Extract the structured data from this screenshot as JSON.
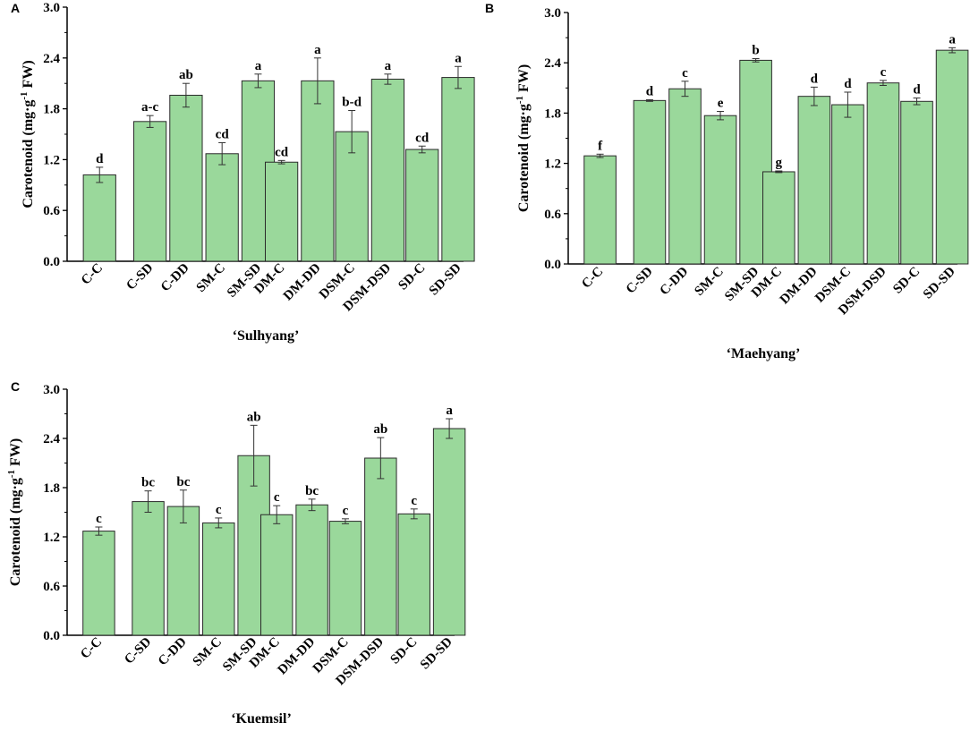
{
  "figure": {
    "bar_color": "#9ad89b",
    "bar_stroke": "#2a2a2a"
  },
  "chart_data": [
    {
      "type": "bar",
      "panel": "A",
      "subtitle": "‘Sulhyang’",
      "ylabel_main": "Carotenoid (mg·g",
      "ylabel_sup": "-1",
      "ylabel_end": " FW)",
      "ylim": [
        0,
        3.0
      ],
      "yticks": [
        "0.0",
        "0.6",
        "1.2",
        "1.8",
        "2.4",
        "3.0"
      ],
      "ytick_values": [
        0,
        0.6,
        1.2,
        1.8,
        2.4,
        3.0
      ],
      "categories": [
        "C-C",
        "C-SD",
        "C-DD",
        "SM-C",
        "SM-SD",
        "DM-C",
        "DM-DD",
        "DSM-C",
        "DSM-DSD",
        "SD-C",
        "SD-SD"
      ],
      "values": [
        1.02,
        1.65,
        1.96,
        1.27,
        2.13,
        1.17,
        2.13,
        1.53,
        2.15,
        1.32,
        2.17
      ],
      "errors": [
        0.09,
        0.07,
        0.14,
        0.13,
        0.08,
        0.02,
        0.27,
        0.25,
        0.06,
        0.04,
        0.13
      ],
      "letters": [
        "d",
        "a-c",
        "ab",
        "cd",
        "a",
        "cd",
        "a",
        "b-d",
        "a",
        "cd",
        "a"
      ]
    },
    {
      "type": "bar",
      "panel": "B",
      "subtitle": "‘Maehyang’",
      "ylabel_main": "Carotenoid (mg·g",
      "ylabel_sup": "-1",
      "ylabel_end": " FW)",
      "ylim": [
        0,
        3.0
      ],
      "yticks": [
        "0.0",
        "0.6",
        "1.2",
        "1.8",
        "2.4",
        "3.0"
      ],
      "ytick_values": [
        0,
        0.6,
        1.2,
        1.8,
        2.4,
        3.0
      ],
      "categories": [
        "C-C",
        "C-SD",
        "C-DD",
        "SM-C",
        "SM-SD",
        "DM-C",
        "DM-DD",
        "DSM-C",
        "DSM-DSD",
        "SD-C",
        "SD-SD"
      ],
      "values": [
        1.29,
        1.95,
        2.09,
        1.77,
        2.43,
        1.1,
        2.0,
        1.9,
        2.16,
        1.94,
        2.55
      ],
      "errors": [
        0.02,
        0.01,
        0.09,
        0.05,
        0.02,
        0.01,
        0.11,
        0.15,
        0.03,
        0.04,
        0.03
      ],
      "letters": [
        "f",
        "d",
        "c",
        "e",
        "b",
        "g",
        "d",
        "d",
        "c",
        "d",
        "a"
      ]
    },
    {
      "type": "bar",
      "panel": "C",
      "subtitle": "‘Kuemsil’",
      "ylabel_main": "Carotenoid (mg·g",
      "ylabel_sup": "-1",
      "ylabel_end": " FW)",
      "ylim": [
        0,
        3.0
      ],
      "yticks": [
        "0.0",
        "0.6",
        "1.2",
        "1.8",
        "2.4",
        "3.0"
      ],
      "ytick_values": [
        0,
        0.6,
        1.2,
        1.8,
        2.4,
        3.0
      ],
      "categories": [
        "C-C",
        "C-SD",
        "C-DD",
        "SM-C",
        "SM-SD",
        "DM-C",
        "DM-DD",
        "DSM-C",
        "DSM-DSD",
        "SD-C",
        "SD-SD"
      ],
      "values": [
        1.27,
        1.63,
        1.57,
        1.37,
        2.19,
        1.47,
        1.59,
        1.39,
        2.16,
        1.48,
        2.52
      ],
      "errors": [
        0.05,
        0.13,
        0.2,
        0.06,
        0.37,
        0.11,
        0.07,
        0.03,
        0.25,
        0.06,
        0.12
      ],
      "letters": [
        "c",
        "bc",
        "bc",
        "c",
        "ab",
        "c",
        "bc",
        "c",
        "ab",
        "c",
        "a"
      ]
    }
  ]
}
